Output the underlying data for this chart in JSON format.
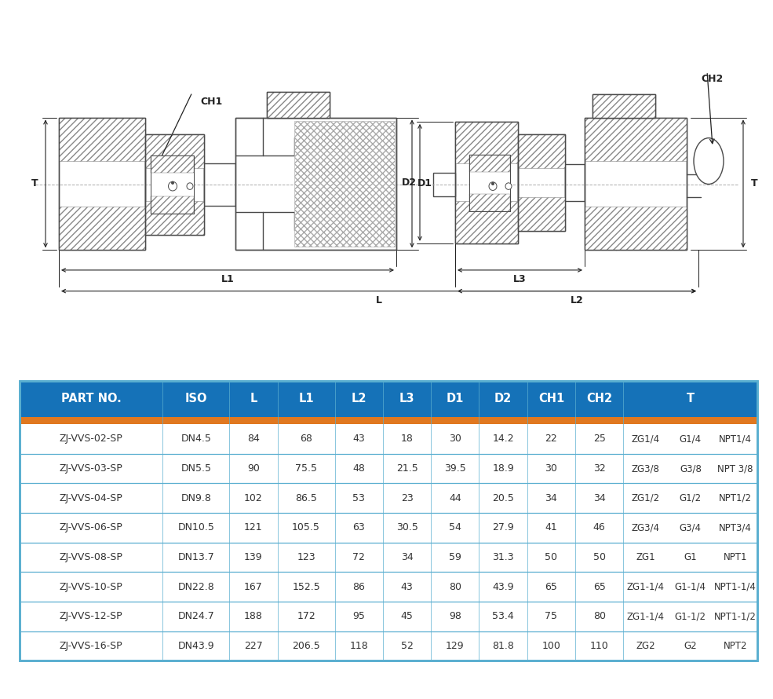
{
  "table_header_bg": "#1572b8",
  "table_header_text_color": "#ffffff",
  "table_orange_bar_color": "#e07820",
  "table_row_line_color": "#5aafd0",
  "table_bg": "#ffffff",
  "table_text_color": "#333333",
  "columns": [
    "PART NO.",
    "ISO",
    "L",
    "L1",
    "L2",
    "L3",
    "D1",
    "D2",
    "CH1",
    "CH2",
    "T"
  ],
  "col_widths": [
    1.55,
    0.72,
    0.52,
    0.62,
    0.52,
    0.52,
    0.52,
    0.52,
    0.52,
    0.52,
    1.45
  ],
  "t_col_parts": [
    [
      "ZG1/4",
      "G1/4",
      "NPT1/4"
    ],
    [
      "ZG3/8",
      "G3/8",
      "NPT 3/8"
    ],
    [
      "ZG1/2",
      "G1/2",
      "NPT1/2"
    ],
    [
      "ZG3/4",
      "G3/4",
      "NPT3/4"
    ],
    [
      "ZG1",
      "G1",
      "NPT1"
    ],
    [
      "ZG1-1/4",
      "G1-1/4",
      "NPT1-1/4"
    ],
    [
      "ZG1-1/4",
      "G1-1/2",
      "NPT1-1/2"
    ],
    [
      "ZG2",
      "G2",
      "NPT2"
    ]
  ],
  "rows": [
    [
      "ZJ-VVS-02-SP",
      "DN4.5",
      "84",
      "68",
      "43",
      "18",
      "30",
      "14.2",
      "22",
      "25"
    ],
    [
      "ZJ-VVS-03-SP",
      "DN5.5",
      "90",
      "75.5",
      "48",
      "21.5",
      "39.5",
      "18.9",
      "30",
      "32"
    ],
    [
      "ZJ-VVS-04-SP",
      "DN9.8",
      "102",
      "86.5",
      "53",
      "23",
      "44",
      "20.5",
      "34",
      "34"
    ],
    [
      "ZJ-VVS-06-SP",
      "DN10.5",
      "121",
      "105.5",
      "63",
      "30.5",
      "54",
      "27.9",
      "41",
      "46"
    ],
    [
      "ZJ-VVS-08-SP",
      "DN13.7",
      "139",
      "123",
      "72",
      "34",
      "59",
      "31.3",
      "50",
      "50"
    ],
    [
      "ZJ-VVS-10-SP",
      "DN22.8",
      "167",
      "152.5",
      "86",
      "43",
      "80",
      "43.9",
      "65",
      "65"
    ],
    [
      "ZJ-VVS-12-SP",
      "DN24.7",
      "188",
      "172",
      "95",
      "45",
      "98",
      "53.4",
      "75",
      "80"
    ],
    [
      "ZJ-VVS-16-SP",
      "DN43.9",
      "227",
      "206.5",
      "118",
      "52",
      "129",
      "81.8",
      "100",
      "110"
    ]
  ],
  "diagram_bg": "#ffffff",
  "lc": "#4a4a4a",
  "hatch_color": "#888888",
  "dim_color": "#222222",
  "center_line_color": "#aaaaaa"
}
